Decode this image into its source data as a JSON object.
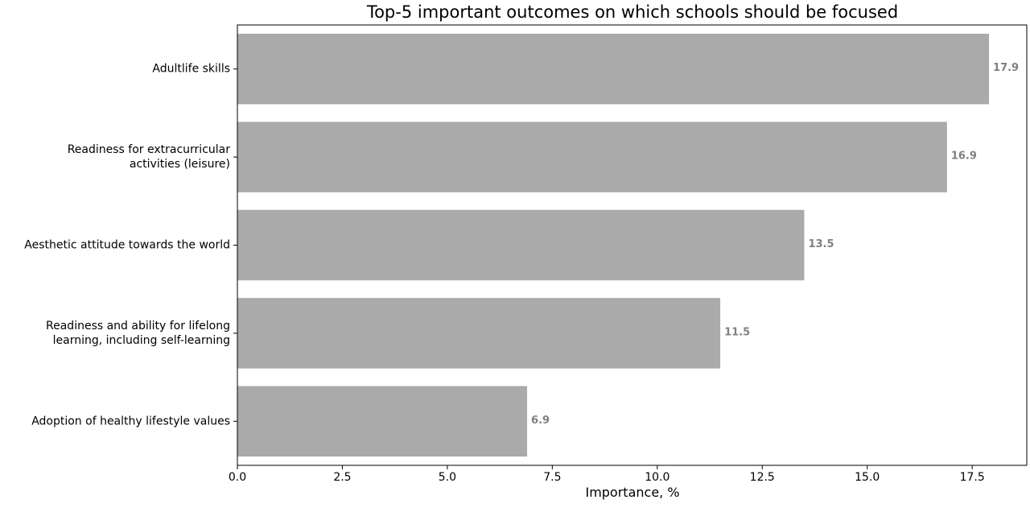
{
  "chart_data": {
    "type": "bar",
    "orientation": "horizontal",
    "title": "Top-5 important outcomes on which schools should be focused",
    "xlabel": "Importance, %",
    "ylabel": "",
    "categories": [
      [
        "Adultlife skills"
      ],
      [
        "Readiness for extracurricular",
        "activities (leisure)"
      ],
      [
        "Aesthetic attitude towards the world"
      ],
      [
        "Readiness and ability for lifelong",
        "learning, including self-learning"
      ],
      [
        "Adoption of healthy lifestyle values"
      ]
    ],
    "values": [
      17.9,
      16.9,
      13.5,
      11.5,
      6.9
    ],
    "value_labels": [
      "17.9",
      "16.9",
      "13.5",
      "11.5",
      "6.9"
    ],
    "xlim": [
      0,
      18.8
    ],
    "xticks": [
      0,
      2.5,
      5,
      7.5,
      10,
      12.5,
      15,
      17.5
    ],
    "xtick_labels": [
      "0.0",
      "2.5",
      "5.0",
      "7.5",
      "10.0",
      "12.5",
      "15.0",
      "17.5"
    ],
    "grid": false,
    "legend": "none",
    "colors": {
      "bar": "#aaaaaa",
      "value_label": "#808080",
      "axis": "#000000",
      "text": "#000000"
    }
  }
}
